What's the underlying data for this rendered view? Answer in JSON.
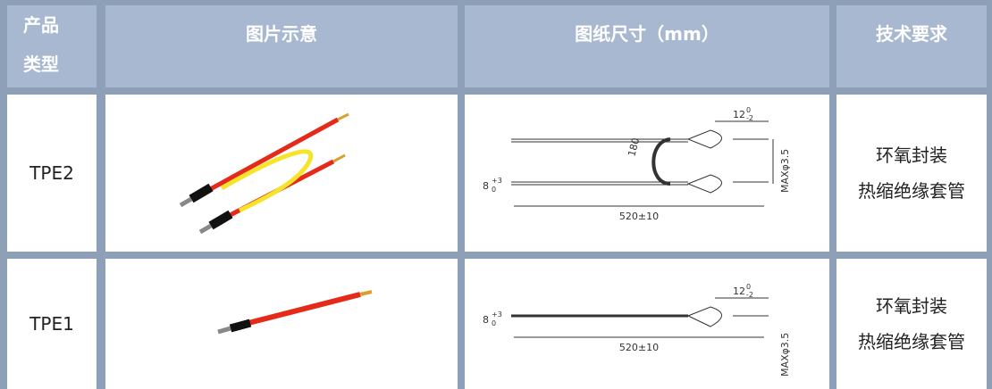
{
  "header": {
    "cells": [
      "产品类型",
      "图片示意",
      "图纸尺寸（mm）",
      "技术要求"
    ]
  },
  "rows": [
    {
      "type": "TPE2",
      "drawing": {
        "length": "520±10",
        "lead": "8",
        "lead_tol_upper": "+3",
        "lead_tol_lower": "0",
        "head": "12",
        "head_tol_upper": "0",
        "head_tol_lower": "-2",
        "diameter": "MAXφ3.5",
        "bend": "180"
      },
      "requirements": [
        "环氧封装",
        "热缩绝缘套管"
      ]
    },
    {
      "type": "TPE1",
      "drawing": {
        "length": "520±10",
        "lead": "8",
        "lead_tol_upper": "+3",
        "lead_tol_lower": "0",
        "head": "12",
        "head_tol_upper": "0",
        "head_tol_lower": "-2",
        "diameter": "MAXφ3.5"
      },
      "requirements": [
        "环氧封装",
        "热缩绝缘套管"
      ]
    }
  ]
}
